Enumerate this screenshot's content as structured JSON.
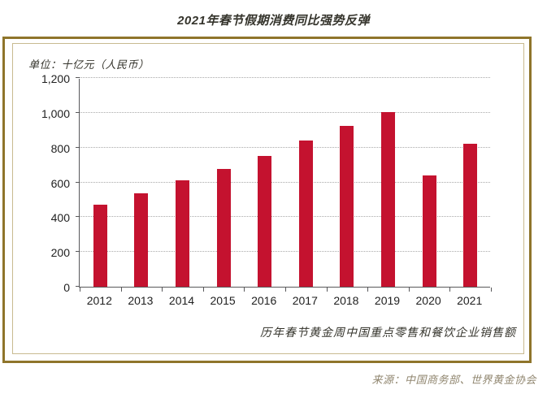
{
  "page": {
    "title": "2021年春节假期消费同比强势反弹",
    "unit_label": "单位：十亿元（人民币）",
    "caption": "历年春节黄金周中国重点零售和餐饮企业销售额",
    "source": "来源：中国商务部、世界黄金协会"
  },
  "colors": {
    "bar": "#c4122f",
    "outer_border_gold": "#8f752b",
    "inner_border_tan": "#c8ba90",
    "axis": "#58585a",
    "gridline": "#a9a9a9",
    "ink_text": "#35342c",
    "source_text": "#90866f"
  },
  "chart_data": {
    "type": "bar",
    "title": "2021年春节假期消费同比强势反弹",
    "subtitle": "历年春节黄金周中国重点零售和餐饮企业销售额",
    "unit": "单位：十亿元（人民币）",
    "categories": [
      "2012",
      "2013",
      "2014",
      "2015",
      "2016",
      "2017",
      "2018",
      "2019",
      "2020",
      "2021"
    ],
    "values": [
      470,
      539,
      610,
      678,
      754,
      840,
      926,
      1005,
      640,
      821
    ],
    "xlabel": "",
    "ylabel": "十亿元（人民币）",
    "ylim": [
      0,
      1200
    ],
    "ytick_step": 200,
    "grid": "horizontal-dotted",
    "legend": "none",
    "source": "来源：中国商务部、世界黄金协会"
  }
}
